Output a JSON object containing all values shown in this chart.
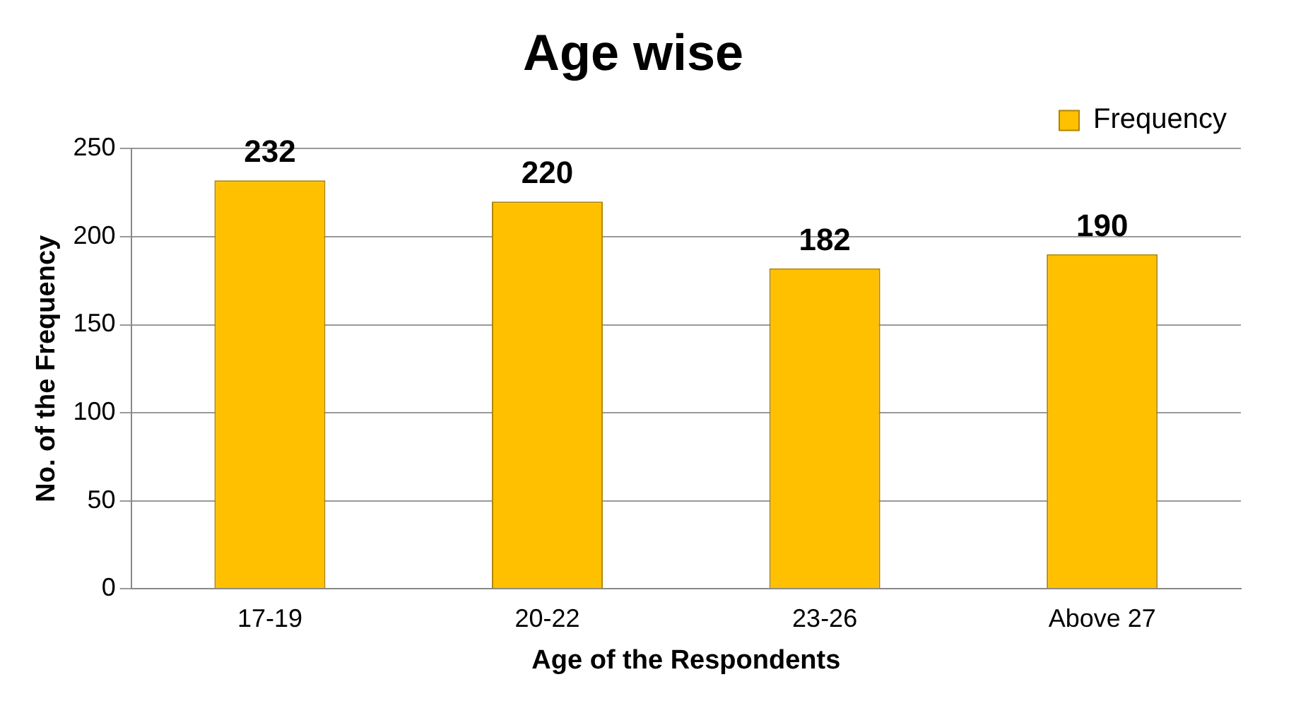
{
  "chart_data": {
    "type": "bar",
    "title": "Age wise",
    "xlabel": "Age of the Respondents",
    "ylabel": "No. of the Frequency",
    "categories": [
      "17-19",
      "20-22",
      "23-26",
      "Above 27"
    ],
    "series": [
      {
        "name": "Frequency",
        "color": "#ffc000",
        "values": [
          232,
          220,
          182,
          190
        ]
      }
    ],
    "ylim": [
      0,
      250
    ],
    "yticks": [
      0,
      50,
      100,
      150,
      200,
      250
    ],
    "grid": "y",
    "legend": "top right",
    "data_labels": true
  }
}
